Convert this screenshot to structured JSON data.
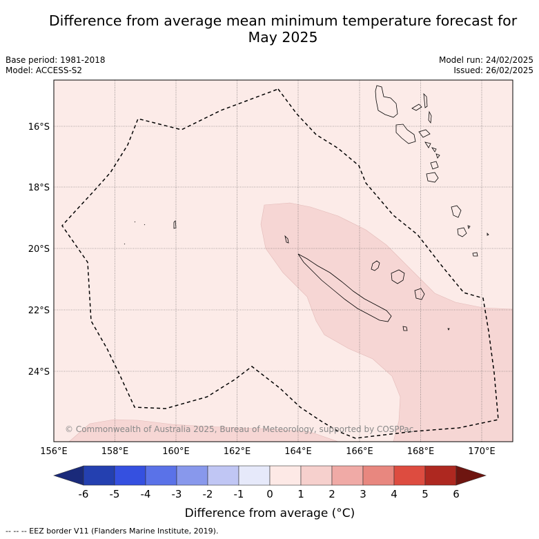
{
  "title_line1": "Difference from average mean minimum temperature forecast for",
  "title_line2": "May 2025",
  "base_period": "Base period: 1981-2018",
  "model": "Model: ACCESS-S2",
  "model_run": "Model run: 24/02/2025",
  "issued": "Issued: 26/02/2025",
  "copyright": "© Commonwealth of Australia 2025, Bureau of Meteorology, supported by COSPPac",
  "colorbar_label": "Difference from average (°C)",
  "footer": "--  --  -- EEZ border V11 (Flanders Marine Institute, 2019).",
  "lon_ticks": [
    "156°E",
    "158°E",
    "160°E",
    "162°E",
    "164°E",
    "166°E",
    "168°E",
    "170°E"
  ],
  "lat_ticks": [
    "16°S",
    "18°S",
    "20°S",
    "22°S",
    "24°S"
  ],
  "colorbar": {
    "ticks": [
      "-6",
      "-5",
      "-4",
      "-3",
      "-2",
      "-1",
      "0",
      "1",
      "2",
      "3",
      "4",
      "5",
      "6"
    ],
    "colors": [
      "#1a2a7a",
      "#2440b0",
      "#3550e0",
      "#5a72e8",
      "#8898ec",
      "#c0c6f4",
      "#e6e9fa",
      "#fde9e6",
      "#f6d0cd",
      "#f0aaa6",
      "#e8877f",
      "#dd4c40",
      "#ae2820",
      "#6e1510"
    ]
  },
  "anomaly_colors": {
    "zero_to_one": "#fcebe8",
    "one_to_two": "#f6d6d4"
  }
}
